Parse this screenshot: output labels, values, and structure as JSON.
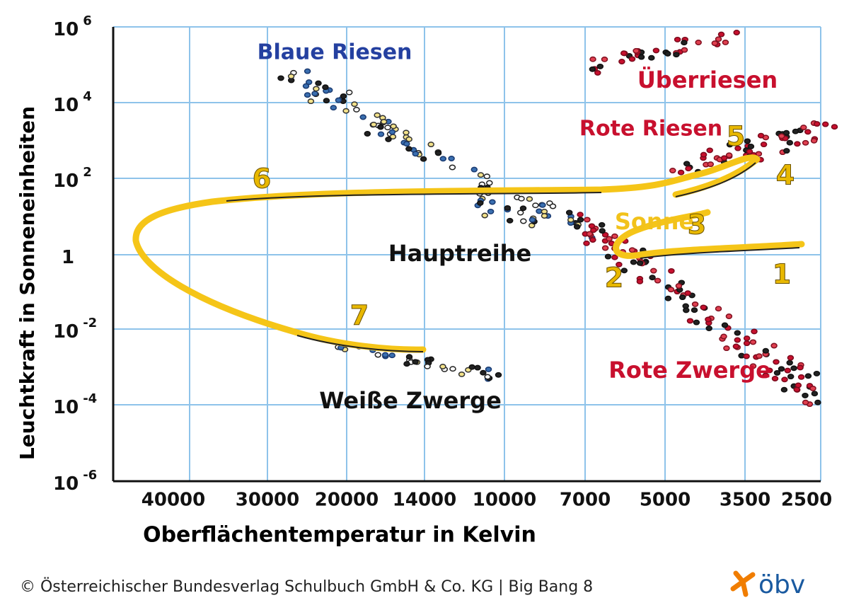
{
  "axes": {
    "y_title": "Leuchtkraft in Sonneneinheiten",
    "x_title": "Oberflächentemperatur in Kelvin",
    "y_ticks": [
      {
        "base": "10",
        "exp": "6"
      },
      {
        "base": "10",
        "exp": "4"
      },
      {
        "base": "10",
        "exp": "2"
      },
      {
        "base": "1"
      },
      {
        "base": "10",
        "exp": "-2"
      },
      {
        "base": "10",
        "exp": "-4"
      },
      {
        "base": "10",
        "exp": "-6"
      }
    ],
    "x_ticks": [
      "40000",
      "30000",
      "20000",
      "14000",
      "10000",
      "7000",
      "5000",
      "3500",
      "2500"
    ]
  },
  "regions": {
    "blue_giants": "Blaue Riesen",
    "supergiants": "Überriesen",
    "red_giants": "Rote Riesen",
    "main_sequence": "Hauptreihe",
    "white_dwarfs": "Weiße Zwerge",
    "red_dwarfs": "Rote Zwerge",
    "sun": "Sonne"
  },
  "stages": [
    "1",
    "2",
    "3",
    "4",
    "5",
    "6",
    "7"
  ],
  "footer": {
    "copyright": "© Österreichischer Bundesverlag Schulbuch GmbH & Co. KG |  Big Bang 8",
    "logo": "öbv"
  }
}
